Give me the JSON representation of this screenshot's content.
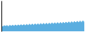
{
  "chart_data": {
    "type": "area",
    "values": [
      52,
      44,
      56,
      48,
      57,
      46,
      59,
      50,
      60,
      51,
      62,
      52,
      63,
      54,
      65,
      55,
      66,
      56,
      68,
      57,
      70,
      59,
      71,
      60,
      73,
      62,
      74,
      63,
      76,
      64,
      78,
      65,
      79,
      67,
      81,
      68,
      83,
      70,
      84,
      71,
      86,
      72,
      87,
      74,
      89,
      75,
      91,
      77,
      93,
      79,
      95,
      80,
      97,
      82,
      99,
      84,
      101,
      86,
      103,
      88
    ],
    "color": "#5baee0",
    "ylim": [
      0,
      300
    ],
    "tick_labels": false,
    "grid": false
  }
}
